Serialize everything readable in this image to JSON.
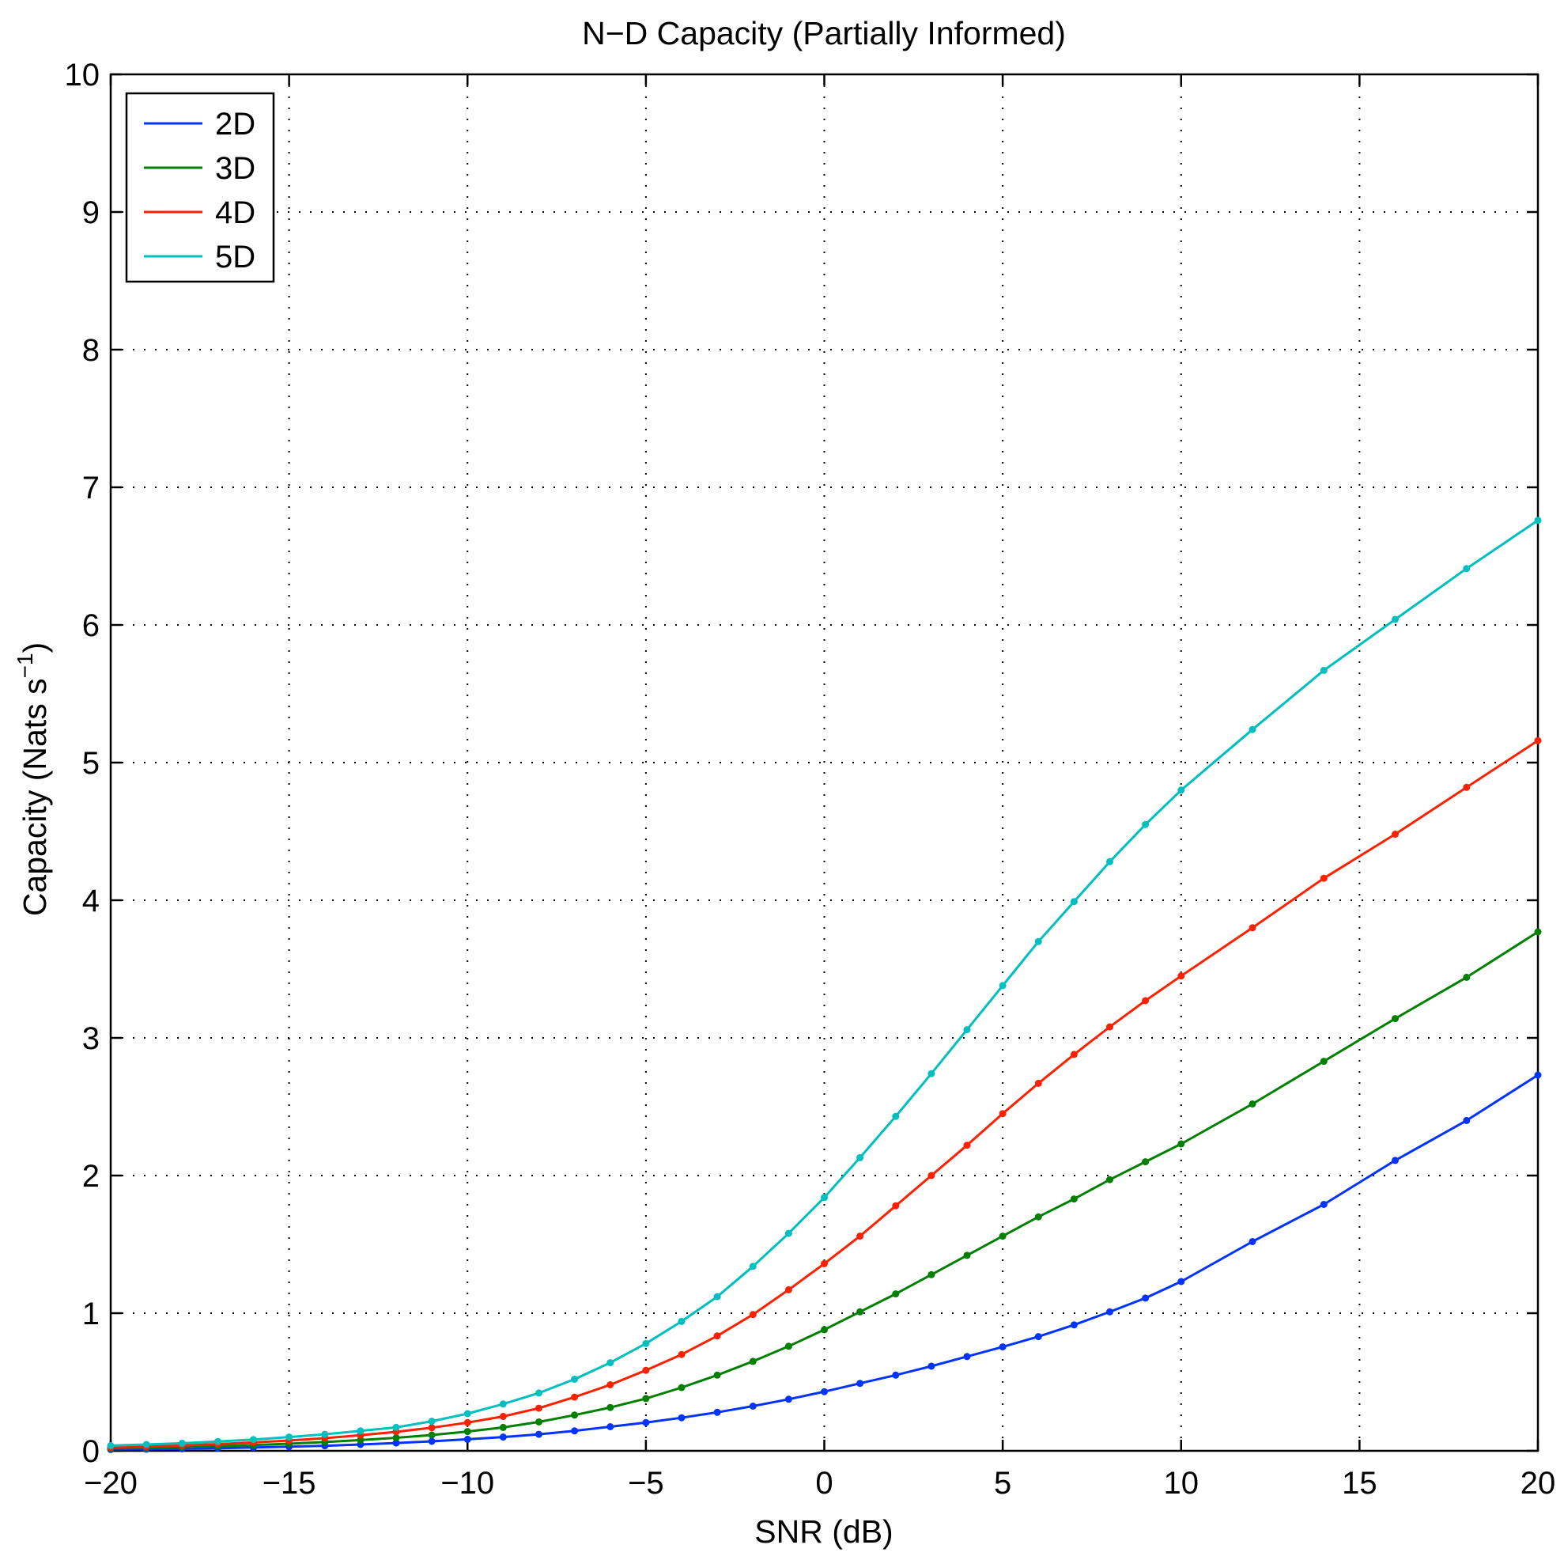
{
  "chart_data": {
    "type": "line",
    "title": "N−D Capacity (Partially Informed)",
    "xlabel": "SNR (dB)",
    "ylabel_main": "Capacity (Nats s",
    "ylabel_sup": "−1",
    "ylabel_close": ")",
    "xlim": [
      -20,
      20
    ],
    "ylim": [
      0,
      10
    ],
    "xticks": [
      -20,
      -15,
      -10,
      -5,
      0,
      5,
      10,
      15,
      20
    ],
    "xtick_labels": [
      "−20",
      "−15",
      "−10",
      "−5",
      "0",
      "5",
      "10",
      "15",
      "20"
    ],
    "yticks": [
      0,
      1,
      2,
      3,
      4,
      5,
      6,
      7,
      8,
      9,
      10
    ],
    "ytick_labels": [
      "0",
      "1",
      "2",
      "3",
      "4",
      "5",
      "6",
      "7",
      "8",
      "9",
      "10"
    ],
    "grid": true,
    "legend_position": "top-left",
    "x": [
      -20,
      -19,
      -18,
      -17,
      -16,
      -15,
      -14,
      -13,
      -12,
      -11,
      -10,
      -9,
      -8,
      -7,
      -6,
      -5,
      -4,
      -3,
      -2,
      -1,
      0,
      1,
      2,
      3,
      4,
      5,
      6,
      7,
      8,
      9,
      10,
      12,
      14,
      16,
      18,
      20
    ],
    "series": [
      {
        "name": "2D",
        "color": "#0033ff",
        "values": [
          0.01,
          0.012,
          0.015,
          0.019,
          0.024,
          0.03,
          0.037,
          0.046,
          0.057,
          0.069,
          0.084,
          0.1,
          0.12,
          0.145,
          0.175,
          0.205,
          0.24,
          0.28,
          0.325,
          0.375,
          0.43,
          0.49,
          0.55,
          0.615,
          0.685,
          0.755,
          0.83,
          0.915,
          1.01,
          1.11,
          1.23,
          1.52,
          1.79,
          2.11,
          2.4,
          2.73
        ]
      },
      {
        "name": "3D",
        "color": "#008000",
        "values": [
          0.018,
          0.022,
          0.027,
          0.034,
          0.042,
          0.052,
          0.064,
          0.078,
          0.095,
          0.115,
          0.14,
          0.17,
          0.21,
          0.26,
          0.315,
          0.38,
          0.46,
          0.55,
          0.65,
          0.76,
          0.88,
          1.01,
          1.14,
          1.28,
          1.42,
          1.56,
          1.7,
          1.83,
          1.97,
          2.1,
          2.23,
          2.52,
          2.83,
          3.14,
          3.44,
          3.77
        ]
      },
      {
        "name": "4D",
        "color": "#ff2000",
        "values": [
          0.025,
          0.031,
          0.039,
          0.049,
          0.061,
          0.075,
          0.092,
          0.113,
          0.138,
          0.168,
          0.205,
          0.25,
          0.31,
          0.39,
          0.48,
          0.585,
          0.7,
          0.835,
          0.99,
          1.17,
          1.36,
          1.56,
          1.78,
          2.0,
          2.22,
          2.45,
          2.67,
          2.88,
          3.08,
          3.27,
          3.45,
          3.8,
          4.16,
          4.48,
          4.82,
          5.16
        ]
      },
      {
        "name": "5D",
        "color": "#00bfbf",
        "values": [
          0.038,
          0.046,
          0.055,
          0.067,
          0.082,
          0.1,
          0.12,
          0.145,
          0.17,
          0.215,
          0.27,
          0.34,
          0.42,
          0.52,
          0.64,
          0.78,
          0.94,
          1.12,
          1.34,
          1.58,
          1.84,
          2.13,
          2.43,
          2.74,
          3.06,
          3.38,
          3.7,
          3.99,
          4.28,
          4.55,
          4.8,
          5.24,
          5.67,
          6.04,
          6.41,
          6.76
        ]
      }
    ]
  }
}
